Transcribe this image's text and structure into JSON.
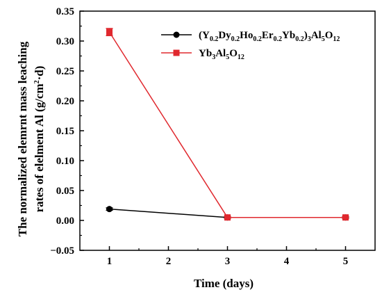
{
  "chart_data": {
    "type": "line",
    "xlabel": "Time (days)",
    "ylabel_line1": "The normalized elemrnt mass leaching",
    "ylabel_line2": "rates of elelment Al (g/cm",
    "ylabel_sup": "2",
    "ylabel_end": "·d)",
    "xlim": [
      0.5,
      5.5
    ],
    "ylim": [
      -0.05,
      0.35
    ],
    "x_ticks": [
      "1",
      "2",
      "3",
      "4",
      "5"
    ],
    "y_ticks": [
      "−0.05",
      "0.00",
      "0.05",
      "0.10",
      "0.15",
      "0.20",
      "0.25",
      "0.30",
      "0.35"
    ],
    "legend_position": "top-right",
    "grid": false,
    "series": [
      {
        "name_parts": [
          "(Y",
          "0.2",
          "Dy",
          "0.2",
          "Ho",
          "0.2",
          "Er",
          "0.2",
          "Yb",
          "0.2",
          ")",
          "3",
          "Al",
          "5",
          "O",
          "12"
        ],
        "color": "#000000",
        "marker": "circle",
        "x": [
          1,
          3,
          5
        ],
        "y": [
          0.019,
          0.005,
          0.005
        ],
        "err": [
          0.002,
          0.001,
          0.001
        ]
      },
      {
        "name_parts": [
          "Yb",
          "3",
          "Al",
          "5",
          "O",
          "12"
        ],
        "color": "#e0282e",
        "marker": "square",
        "x": [
          1,
          3,
          5
        ],
        "y": [
          0.315,
          0.005,
          0.005
        ],
        "err": [
          0.006,
          0.002,
          0.002
        ]
      }
    ]
  }
}
